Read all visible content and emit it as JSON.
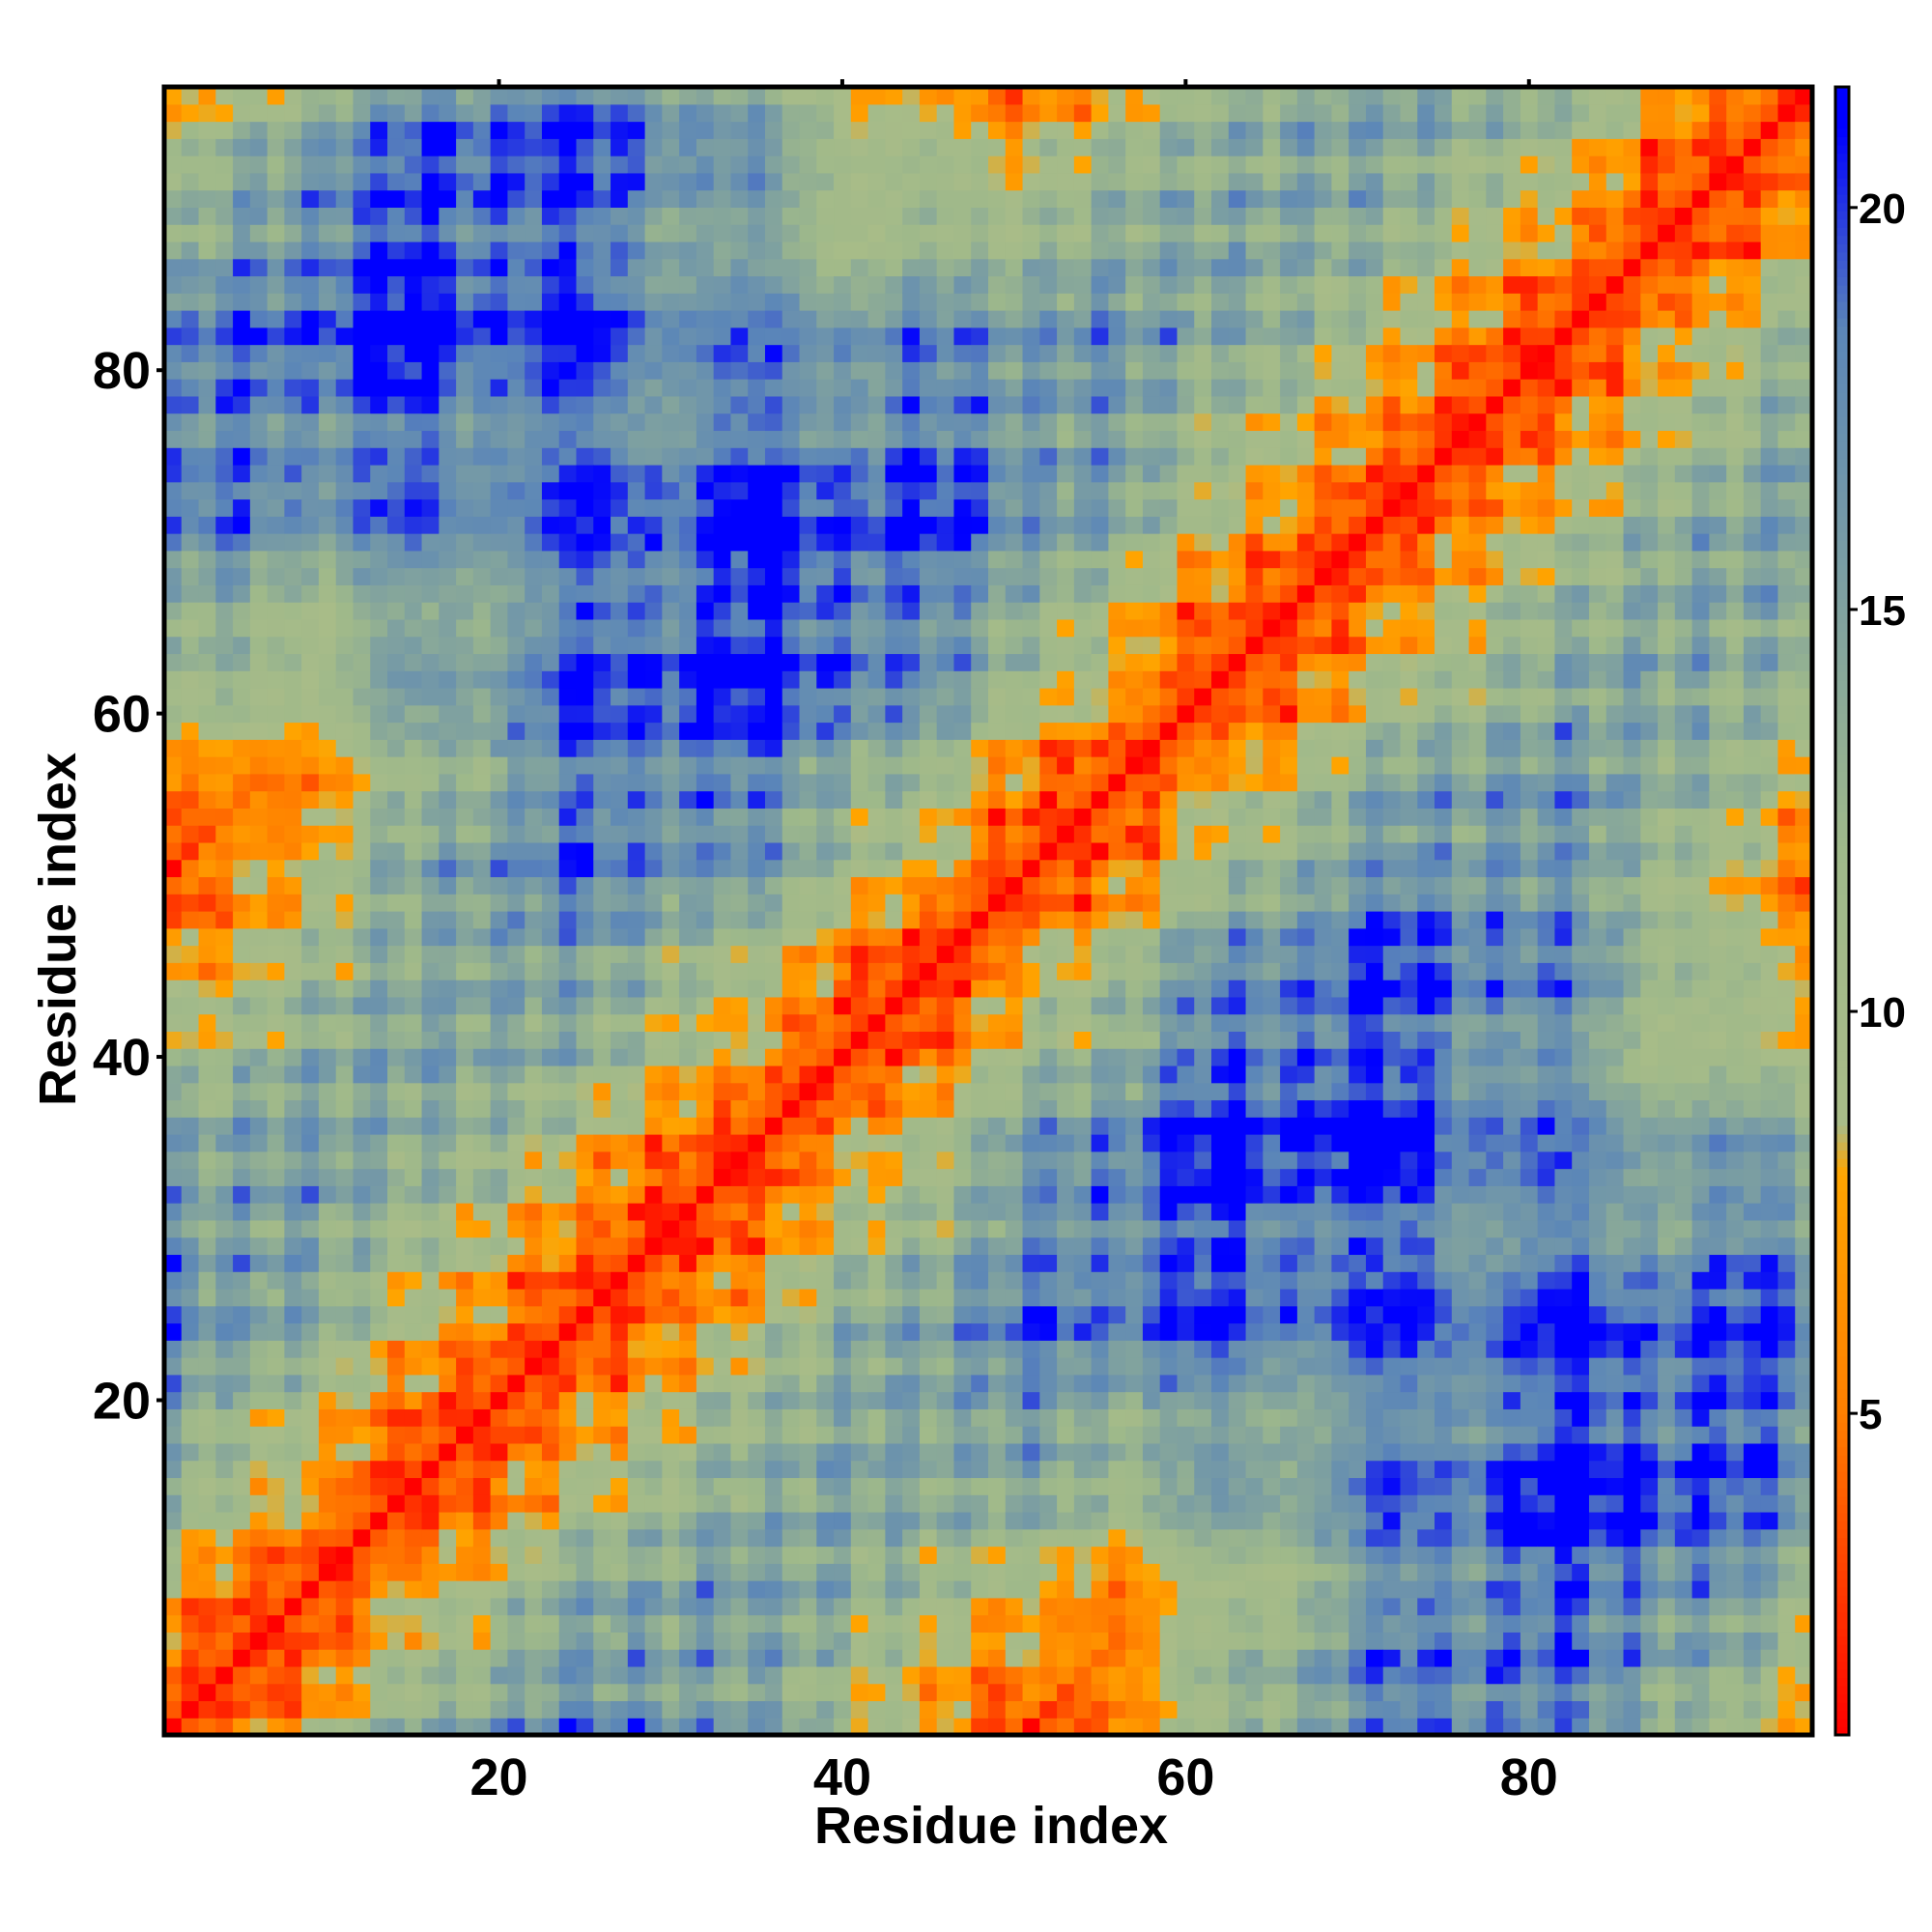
{
  "chart_data": {
    "type": "heatmap",
    "title": "",
    "xlabel": "Residue index",
    "ylabel": "Residue index",
    "x_range": [
      1,
      96
    ],
    "y_range": [
      1,
      96
    ],
    "x_ticks": [
      20,
      40,
      60,
      80
    ],
    "x_tick_labels": [
      "20",
      "40",
      "60",
      "80"
    ],
    "y_ticks": [
      20,
      40,
      60,
      80
    ],
    "y_tick_labels": [
      "20",
      "40",
      "60",
      "80"
    ],
    "colorbar": {
      "range": [
        1,
        21.5
      ],
      "ticks": [
        5,
        10,
        15,
        20
      ],
      "tick_labels": [
        "5",
        "10",
        "15",
        "20"
      ],
      "placement": "right",
      "colormap": [
        {
          "value": 1,
          "color": "#ff0000"
        },
        {
          "value": 5,
          "color": "#ff7f00"
        },
        {
          "value": 8,
          "color": "#ffa500"
        },
        {
          "value": 8.6,
          "color": "#a9bc88"
        },
        {
          "value": 12,
          "color": "#9fb98a"
        },
        {
          "value": 18.5,
          "color": "#5b86b8"
        },
        {
          "value": 21,
          "color": "#0000ff"
        }
      ]
    },
    "description_of_values": "symmetric residue-residue distance map",
    "matrix_size": 96
  },
  "colors": {
    "near": "#ff0000",
    "mid": "#ffa500",
    "far": "#0000ff",
    "band": "#9fb98a"
  }
}
